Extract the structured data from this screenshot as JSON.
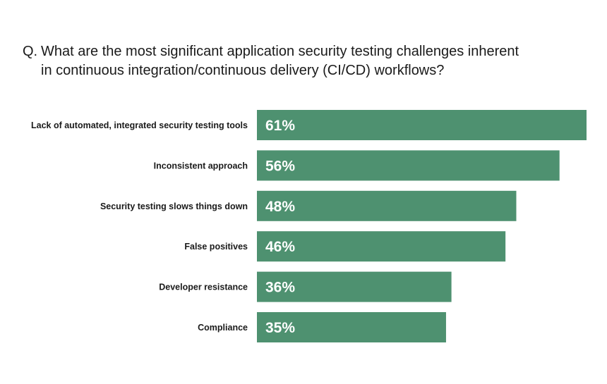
{
  "question": {
    "prefix": "Q.",
    "line1": "What are the most significant application security testing challenges inherent",
    "line2": "in continuous integration/continuous delivery (CI/CD) workflows?"
  },
  "colors": {
    "bar": "#4e9170",
    "value_text": "#ffffff",
    "label_text": "#1a1a1a"
  },
  "chart_data": {
    "type": "bar",
    "orientation": "horizontal",
    "categories": [
      "Lack of automated, integrated security testing tools",
      "Inconsistent approach",
      "Security testing slows things down",
      "False positives",
      "Developer resistance",
      "Compliance"
    ],
    "values": [
      61,
      56,
      48,
      46,
      36,
      35
    ],
    "value_labels": [
      "61%",
      "56%",
      "48%",
      "46%",
      "36%",
      "35%"
    ],
    "unit": "%",
    "xlim": [
      0,
      61
    ],
    "grid": false,
    "legend": "none"
  }
}
